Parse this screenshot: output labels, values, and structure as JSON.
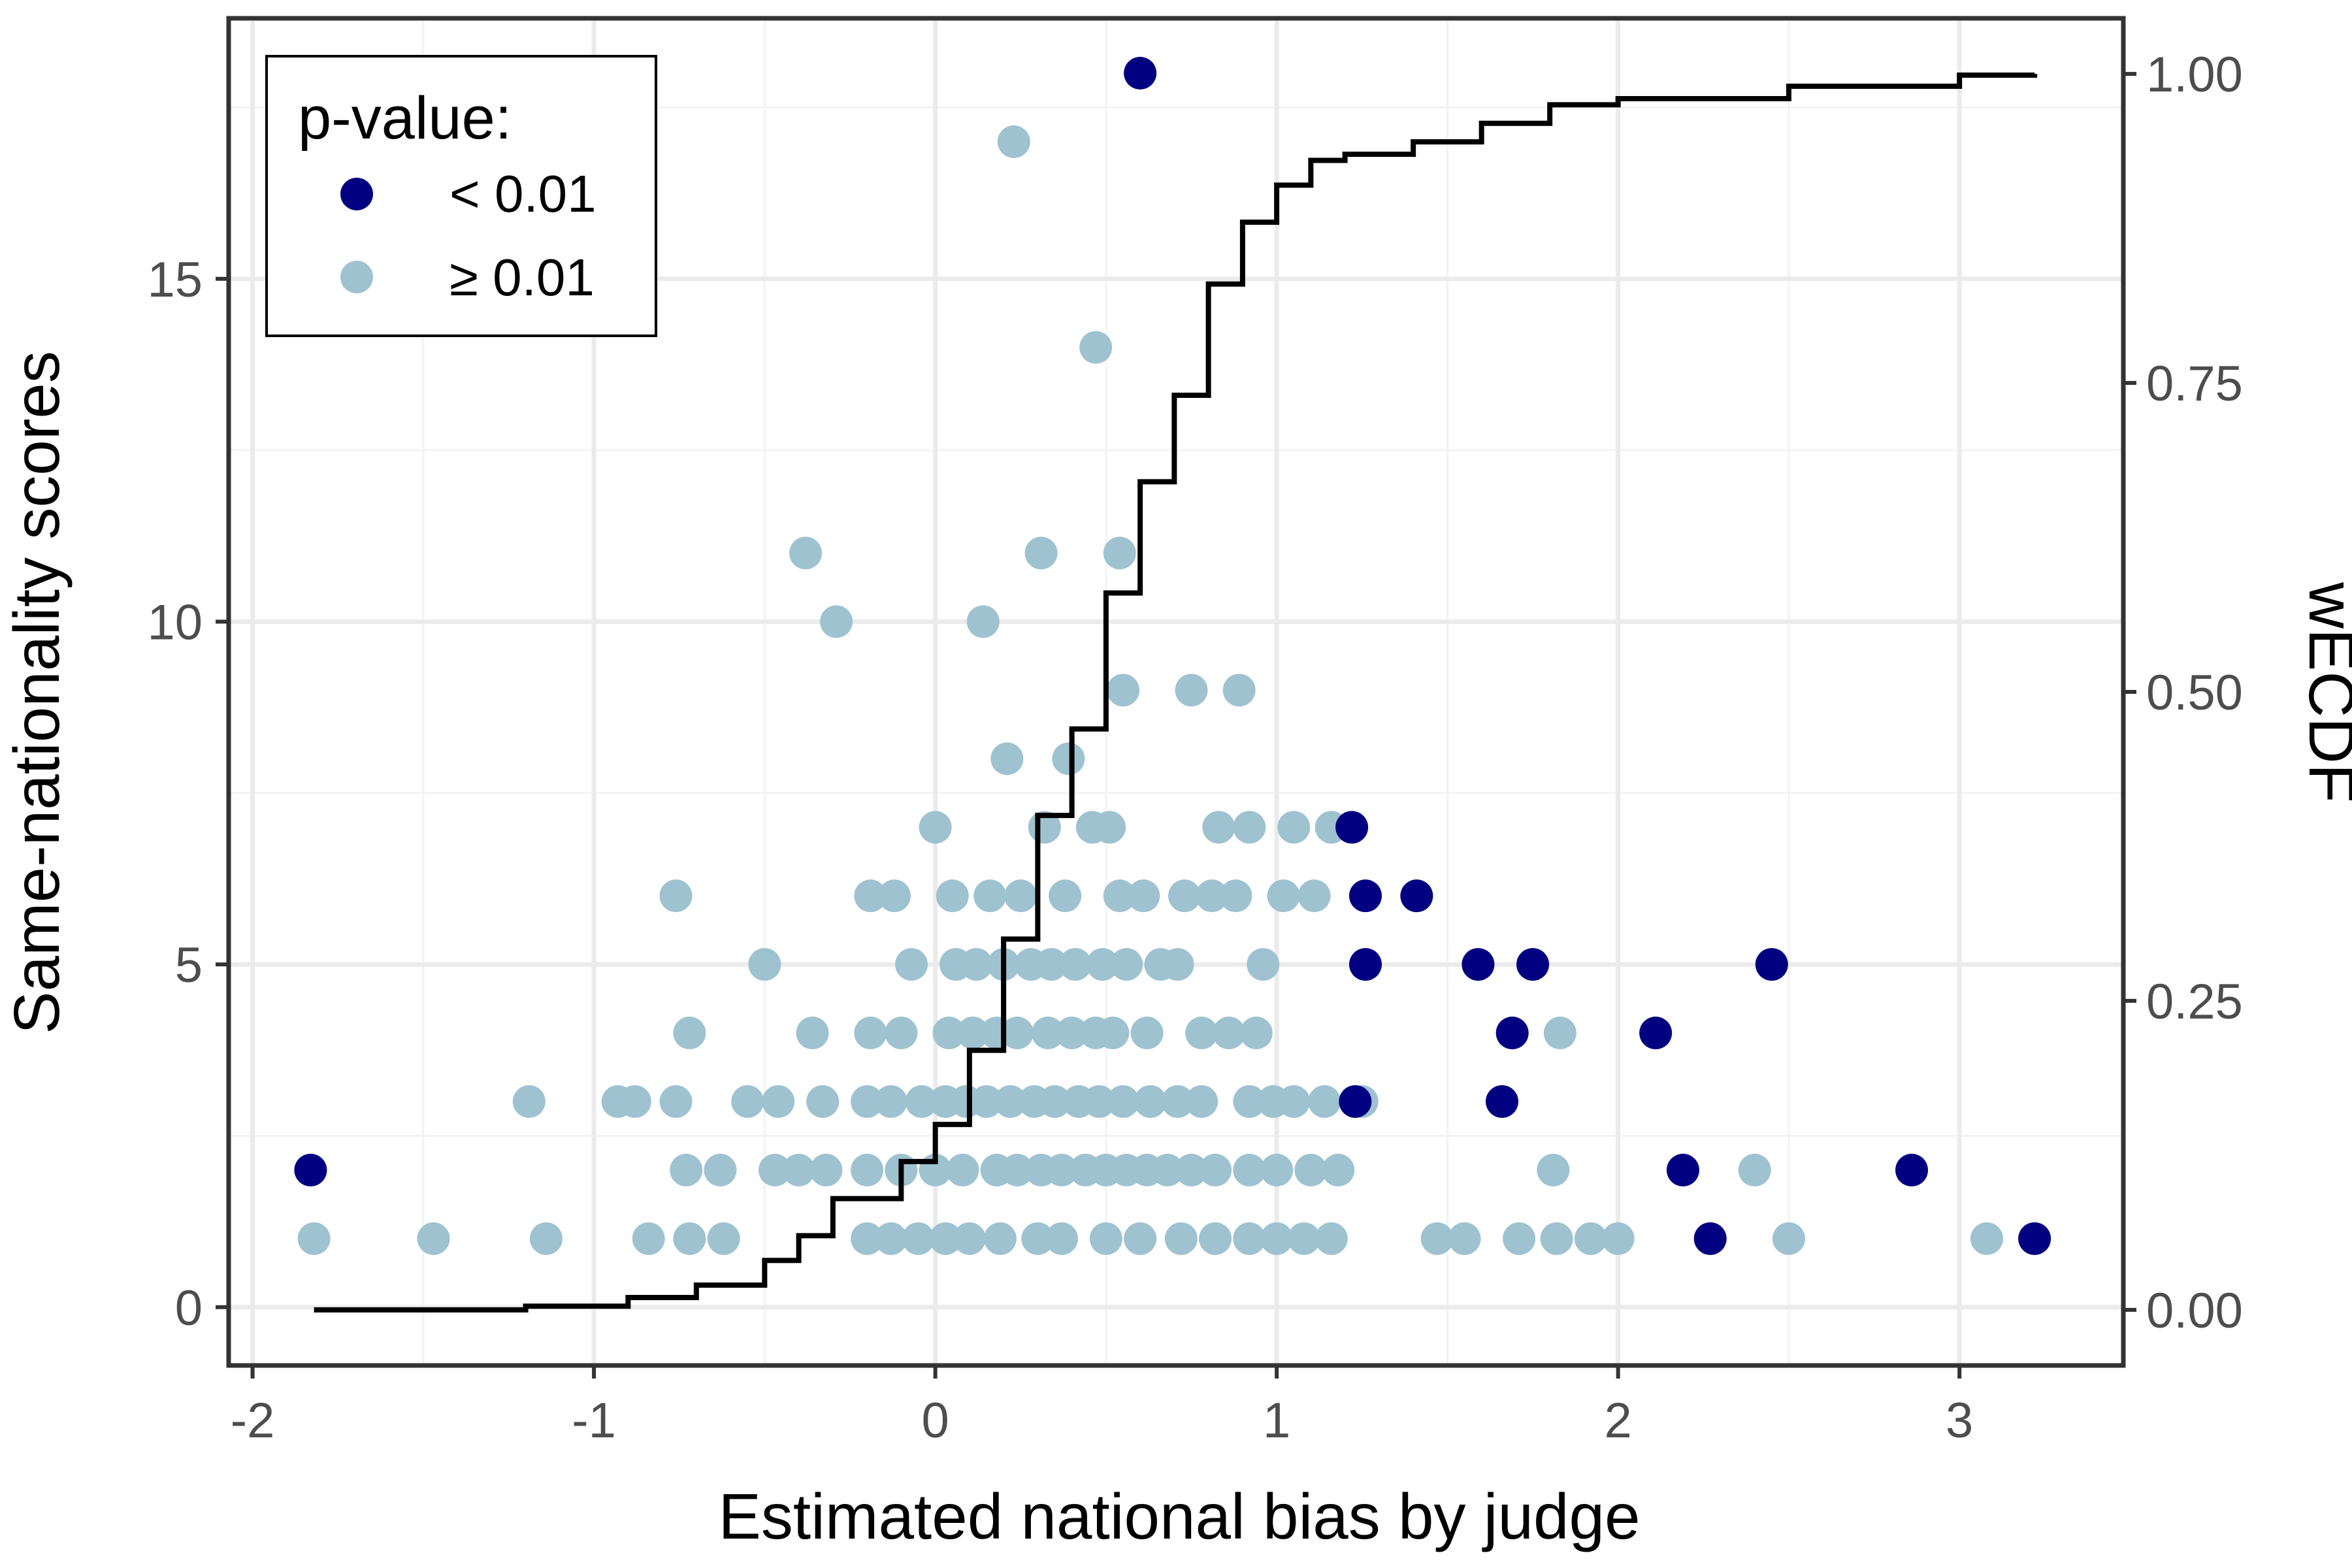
{
  "chart_data": {
    "type": "scatter",
    "title": "",
    "xlabel": "Estimated national bias by judge",
    "ylabel": "Same-nationality scores",
    "y2label": "wECDF",
    "xlim": [
      -2.07,
      3.48
    ],
    "ylim": [
      -0.85,
      18.8
    ],
    "y2lim": [
      -0.045,
      1.045
    ],
    "x_ticks": [
      -2,
      -1,
      0,
      1,
      2,
      3
    ],
    "x_tick_labels": [
      "-2",
      "-1",
      "0",
      "1",
      "2",
      "3"
    ],
    "y_ticks": [
      0,
      5,
      10,
      15
    ],
    "y_tick_labels": [
      "0",
      "5",
      "10",
      "15"
    ],
    "y2_ticks": [
      0,
      0.25,
      0.5,
      0.75,
      1
    ],
    "y2_tick_labels": [
      "0.00",
      "0.25",
      "0.50",
      "0.75",
      "1.00"
    ],
    "grid": true,
    "legend": {
      "title": "p-value:",
      "position": "top-left",
      "entries": [
        {
          "label": "< 0.01",
          "color": "#000080"
        },
        {
          "label": "≥ 0.01",
          "color": "#9fc2d0"
        }
      ]
    },
    "colors": {
      "significant": "#000080",
      "not_significant": "#9fc2d0",
      "ecdf_line": "#000000",
      "panel_border": "#333333"
    },
    "series": [
      {
        "name": "< 0.01",
        "points": [
          [
            0.6,
            18
          ],
          [
            1.22,
            7
          ],
          [
            1.26,
            6
          ],
          [
            1.41,
            6
          ],
          [
            1.26,
            5
          ],
          [
            1.59,
            5
          ],
          [
            1.75,
            5
          ],
          [
            2.45,
            5
          ],
          [
            1.69,
            4
          ],
          [
            2.11,
            4
          ],
          [
            1.66,
            3
          ],
          [
            1.23,
            3
          ],
          [
            -1.83,
            2
          ],
          [
            2.19,
            2
          ],
          [
            2.86,
            2
          ],
          [
            2.27,
            1
          ],
          [
            3.22,
            1
          ]
        ]
      },
      {
        "name": "≥ 0.01",
        "points": [
          [
            0.23,
            17
          ],
          [
            0.47,
            14
          ],
          [
            -0.38,
            11
          ],
          [
            0.31,
            11
          ],
          [
            0.54,
            11
          ],
          [
            -0.29,
            10
          ],
          [
            0.14,
            10
          ],
          [
            0.55,
            9
          ],
          [
            0.75,
            9
          ],
          [
            0.89,
            9
          ],
          [
            0.21,
            8
          ],
          [
            0.39,
            8
          ],
          [
            0.0,
            7
          ],
          [
            0.32,
            7
          ],
          [
            0.46,
            7
          ],
          [
            0.51,
            7
          ],
          [
            0.83,
            7
          ],
          [
            0.92,
            7
          ],
          [
            1.05,
            7
          ],
          [
            1.16,
            7
          ],
          [
            -0.76,
            6
          ],
          [
            -0.19,
            6
          ],
          [
            -0.12,
            6
          ],
          [
            0.05,
            6
          ],
          [
            0.16,
            6
          ],
          [
            0.25,
            6
          ],
          [
            0.38,
            6
          ],
          [
            0.54,
            6
          ],
          [
            0.61,
            6
          ],
          [
            0.73,
            6
          ],
          [
            0.81,
            6
          ],
          [
            0.88,
            6
          ],
          [
            1.02,
            6
          ],
          [
            1.11,
            6
          ],
          [
            -0.5,
            5
          ],
          [
            -0.07,
            5
          ],
          [
            0.06,
            5
          ],
          [
            0.12,
            5
          ],
          [
            0.2,
            5
          ],
          [
            0.28,
            5
          ],
          [
            0.34,
            5
          ],
          [
            0.41,
            5
          ],
          [
            0.49,
            5
          ],
          [
            0.56,
            5
          ],
          [
            0.66,
            5
          ],
          [
            0.71,
            5
          ],
          [
            0.96,
            5
          ],
          [
            -0.72,
            4
          ],
          [
            -0.36,
            4
          ],
          [
            -0.19,
            4
          ],
          [
            -0.1,
            4
          ],
          [
            0.04,
            4
          ],
          [
            0.11,
            4
          ],
          [
            0.18,
            4
          ],
          [
            0.24,
            4
          ],
          [
            0.33,
            4
          ],
          [
            0.4,
            4
          ],
          [
            0.47,
            4
          ],
          [
            0.52,
            4
          ],
          [
            0.62,
            4
          ],
          [
            0.78,
            4
          ],
          [
            0.86,
            4
          ],
          [
            0.94,
            4
          ],
          [
            1.83,
            4
          ],
          [
            -1.19,
            3
          ],
          [
            -0.93,
            3
          ],
          [
            -0.88,
            3
          ],
          [
            -0.76,
            3
          ],
          [
            -0.55,
            3
          ],
          [
            -0.46,
            3
          ],
          [
            -0.33,
            3
          ],
          [
            -0.2,
            3
          ],
          [
            -0.13,
            3
          ],
          [
            -0.04,
            3
          ],
          [
            0.03,
            3
          ],
          [
            0.09,
            3
          ],
          [
            0.15,
            3
          ],
          [
            0.22,
            3
          ],
          [
            0.29,
            3
          ],
          [
            0.35,
            3
          ],
          [
            0.42,
            3
          ],
          [
            0.48,
            3
          ],
          [
            0.55,
            3
          ],
          [
            0.63,
            3
          ],
          [
            0.71,
            3
          ],
          [
            0.78,
            3
          ],
          [
            0.92,
            3
          ],
          [
            0.99,
            3
          ],
          [
            1.05,
            3
          ],
          [
            1.14,
            3
          ],
          [
            1.25,
            3
          ],
          [
            -0.73,
            2
          ],
          [
            -0.63,
            2
          ],
          [
            -0.47,
            2
          ],
          [
            -0.4,
            2
          ],
          [
            -0.32,
            2
          ],
          [
            -0.2,
            2
          ],
          [
            -0.1,
            2
          ],
          [
            0.0,
            2
          ],
          [
            0.08,
            2
          ],
          [
            0.18,
            2
          ],
          [
            0.24,
            2
          ],
          [
            0.31,
            2
          ],
          [
            0.37,
            2
          ],
          [
            0.44,
            2
          ],
          [
            0.5,
            2
          ],
          [
            0.56,
            2
          ],
          [
            0.62,
            2
          ],
          [
            0.68,
            2
          ],
          [
            0.75,
            2
          ],
          [
            0.82,
            2
          ],
          [
            0.92,
            2
          ],
          [
            1.0,
            2
          ],
          [
            1.1,
            2
          ],
          [
            1.18,
            2
          ],
          [
            1.81,
            2
          ],
          [
            2.4,
            2
          ],
          [
            -1.82,
            1
          ],
          [
            -1.47,
            1
          ],
          [
            -1.14,
            1
          ],
          [
            -0.84,
            1
          ],
          [
            -0.72,
            1
          ],
          [
            -0.62,
            1
          ],
          [
            -0.2,
            1
          ],
          [
            -0.13,
            1
          ],
          [
            -0.05,
            1
          ],
          [
            0.03,
            1
          ],
          [
            0.1,
            1
          ],
          [
            0.19,
            1
          ],
          [
            0.3,
            1
          ],
          [
            0.37,
            1
          ],
          [
            0.5,
            1
          ],
          [
            0.6,
            1
          ],
          [
            0.72,
            1
          ],
          [
            0.82,
            1
          ],
          [
            0.92,
            1
          ],
          [
            1.0,
            1
          ],
          [
            1.08,
            1
          ],
          [
            1.16,
            1
          ],
          [
            1.47,
            1
          ],
          [
            1.55,
            1
          ],
          [
            1.71,
            1
          ],
          [
            1.82,
            1
          ],
          [
            1.92,
            1
          ],
          [
            2.0,
            1
          ],
          [
            2.5,
            1
          ],
          [
            3.08,
            1
          ]
        ]
      },
      {
        "name": "wECDF",
        "type": "step",
        "points": [
          [
            -1.82,
            0.0
          ],
          [
            -1.2,
            0.003
          ],
          [
            -0.9,
            0.01
          ],
          [
            -0.7,
            0.02
          ],
          [
            -0.5,
            0.04
          ],
          [
            -0.4,
            0.06
          ],
          [
            -0.3,
            0.09
          ],
          [
            -0.1,
            0.12
          ],
          [
            0.0,
            0.15
          ],
          [
            0.1,
            0.21
          ],
          [
            0.2,
            0.3
          ],
          [
            0.3,
            0.4
          ],
          [
            0.4,
            0.47
          ],
          [
            0.5,
            0.58
          ],
          [
            0.6,
            0.67
          ],
          [
            0.7,
            0.74
          ],
          [
            0.8,
            0.83
          ],
          [
            0.9,
            0.88
          ],
          [
            1.0,
            0.91
          ],
          [
            1.1,
            0.93
          ],
          [
            1.2,
            0.935
          ],
          [
            1.4,
            0.945
          ],
          [
            1.6,
            0.96
          ],
          [
            1.8,
            0.975
          ],
          [
            2.0,
            0.98
          ],
          [
            2.5,
            0.99
          ],
          [
            3.0,
            0.999
          ],
          [
            3.22,
            1.0
          ]
        ]
      }
    ]
  }
}
